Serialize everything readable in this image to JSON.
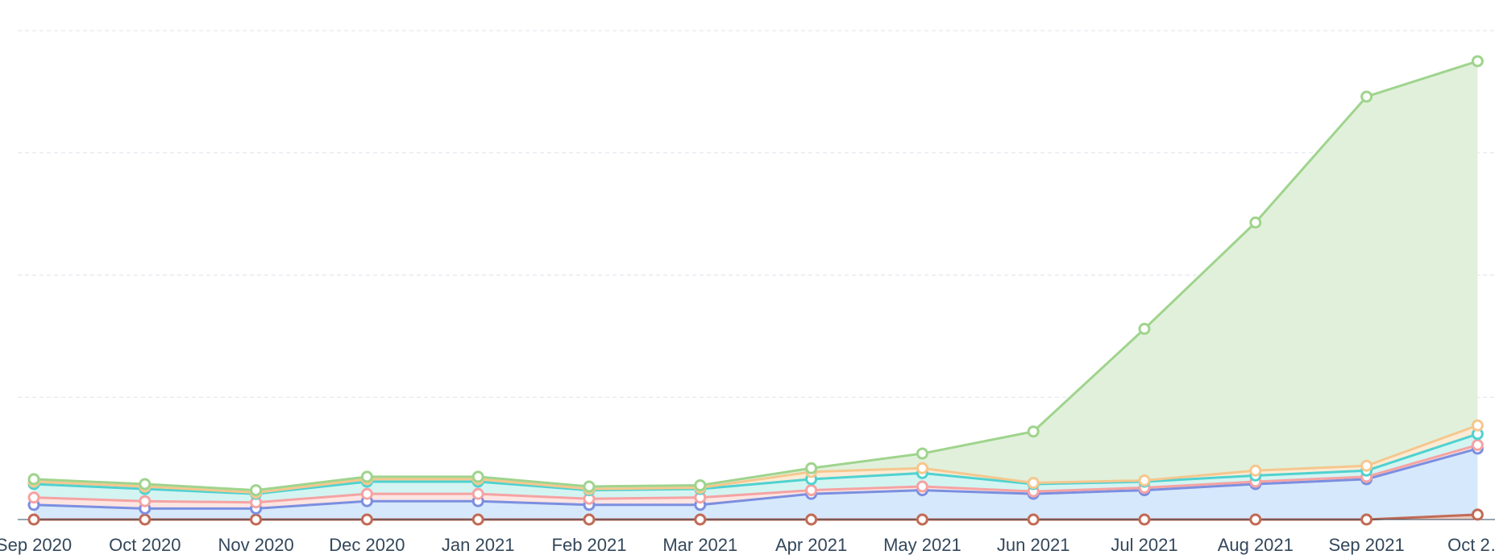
{
  "chart_data": {
    "type": "area",
    "stacked": true,
    "grid": true,
    "title": "",
    "xlabel": "",
    "ylabel": "",
    "categories": [
      "Sep 2020",
      "Oct 2020",
      "Nov 2020",
      "Dec 2020",
      "Jan 2021",
      "Feb 2021",
      "Mar 2021",
      "Apr 2021",
      "May 2021",
      "Jun 2021",
      "Jul 2021",
      "Aug 2021",
      "Sep 2021",
      "Oct 2…"
    ],
    "ylim": [
      0,
      400
    ],
    "y_gridlines": [
      100,
      200,
      300,
      400
    ],
    "series": [
      {
        "color": "#c26a55",
        "fill": "#ebc9bf",
        "values": [
          0,
          0,
          0,
          0,
          0,
          0,
          0,
          0,
          0,
          0,
          0,
          0,
          0,
          4
        ]
      },
      {
        "color": "#7b8fe0",
        "fill": "#d6e8fb",
        "values": [
          12,
          9,
          9,
          15,
          15,
          12,
          12,
          21,
          24,
          21,
          24,
          29,
          33,
          54
        ]
      },
      {
        "color": "#f5a3a3",
        "fill": "#fde5e2",
        "values": [
          6,
          6,
          5,
          6,
          6,
          5,
          6,
          3,
          3,
          2,
          2,
          2,
          2,
          3
        ]
      },
      {
        "color": "#4fd2d0",
        "fill": "#d4f4f2",
        "values": [
          11,
          10,
          7,
          10,
          10,
          7,
          7,
          9,
          11,
          6,
          5,
          5,
          5,
          9
        ]
      },
      {
        "color": "#f5c78e",
        "fill": "#fbebd5",
        "values": [
          2,
          2,
          1,
          2,
          2,
          1,
          1,
          6,
          4,
          1,
          1,
          4,
          4,
          7
        ]
      },
      {
        "color": "#9fd48d",
        "fill": "#e1f0db",
        "values": [
          2,
          2,
          2,
          2,
          2,
          2,
          2,
          3,
          12,
          42,
          124,
          203,
          302,
          298
        ]
      }
    ]
  }
}
